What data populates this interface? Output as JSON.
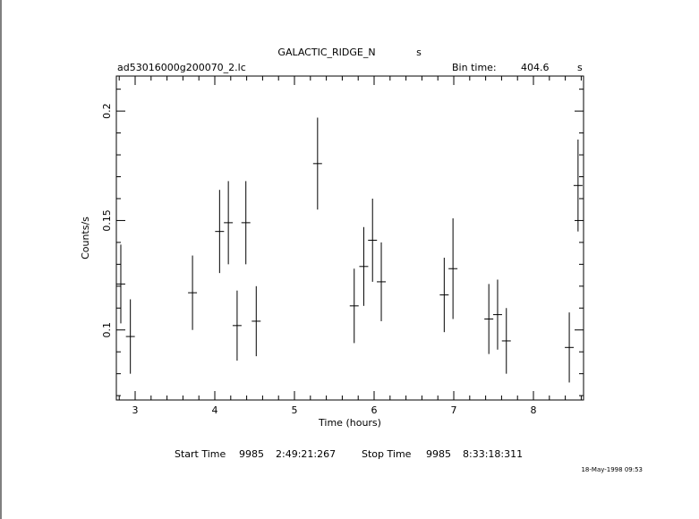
{
  "chart_data": {
    "type": "errorbar",
    "title": "GALACTIC_RIDGE_N",
    "title_unit": "s",
    "subtitle": "ad53016000g200070_2.lc",
    "bin_label": "Bin time:",
    "bin_value": "404.6",
    "bin_unit": "s",
    "xlabel": "Time (hours)",
    "ylabel": "Counts/s",
    "footer": {
      "start_label": "Start Time",
      "start_day": "9985",
      "start_time": "2:49:21:267",
      "stop_label": "Stop Time",
      "stop_day": "9985",
      "stop_time": "8:33:18:311"
    },
    "date": "18-May-1998 09:53",
    "color": "#000000",
    "xlim": [
      2.764,
      8.629
    ],
    "xticks": [
      3,
      4,
      5,
      6,
      7,
      8
    ],
    "ylim": [
      0.068,
      0.216
    ],
    "yticks": [
      0.1,
      0.15,
      0.2
    ],
    "x_error": 0.056,
    "x": [
      2.82,
      2.94,
      3.72,
      4.06,
      4.17,
      4.28,
      4.39,
      4.52,
      5.29,
      5.75,
      5.87,
      5.98,
      6.09,
      6.88,
      6.99,
      7.44,
      7.55,
      7.66,
      8.45,
      8.56
    ],
    "values": [
      0.121,
      0.097,
      0.117,
      0.145,
      0.149,
      0.102,
      0.149,
      0.104,
      0.176,
      0.111,
      0.129,
      0.141,
      0.122,
      0.116,
      0.128,
      0.105,
      0.107,
      0.095,
      0.092,
      0.166
    ],
    "errors": [
      0.018,
      0.017,
      0.017,
      0.019,
      0.019,
      0.016,
      0.019,
      0.016,
      0.021,
      0.017,
      0.018,
      0.019,
      0.018,
      0.017,
      0.023,
      0.016,
      0.016,
      0.015,
      0.016,
      0.021
    ]
  }
}
